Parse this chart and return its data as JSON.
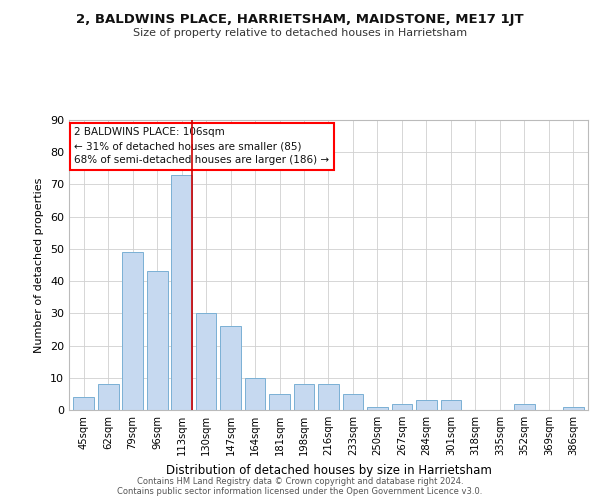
{
  "title": "2, BALDWINS PLACE, HARRIETSHAM, MAIDSTONE, ME17 1JT",
  "subtitle": "Size of property relative to detached houses in Harrietsham",
  "xlabel": "Distribution of detached houses by size in Harrietsham",
  "ylabel": "Number of detached properties",
  "bar_labels": [
    "45sqm",
    "62sqm",
    "79sqm",
    "96sqm",
    "113sqm",
    "130sqm",
    "147sqm",
    "164sqm",
    "181sqm",
    "198sqm",
    "216sqm",
    "233sqm",
    "250sqm",
    "267sqm",
    "284sqm",
    "301sqm",
    "318sqm",
    "335sqm",
    "352sqm",
    "369sqm",
    "386sqm"
  ],
  "bar_values": [
    4,
    8,
    49,
    43,
    73,
    30,
    26,
    10,
    5,
    8,
    8,
    5,
    1,
    2,
    3,
    3,
    0,
    0,
    2,
    0,
    1
  ],
  "bar_color": "#c6d9f0",
  "bar_edge_color": "#7ab0d4",
  "ylim": [
    0,
    90
  ],
  "yticks": [
    0,
    10,
    20,
    30,
    40,
    50,
    60,
    70,
    80,
    90
  ],
  "annotation_title": "2 BALDWINS PLACE: 106sqm",
  "annotation_line1": "← 31% of detached houses are smaller (85)",
  "annotation_line2": "68% of semi-detached houses are larger (186) →",
  "vline_x": 4.425,
  "footer_line1": "Contains HM Land Registry data © Crown copyright and database right 2024.",
  "footer_line2": "Contains public sector information licensed under the Open Government Licence v3.0.",
  "background_color": "#ffffff",
  "grid_color": "#d0d0d0"
}
